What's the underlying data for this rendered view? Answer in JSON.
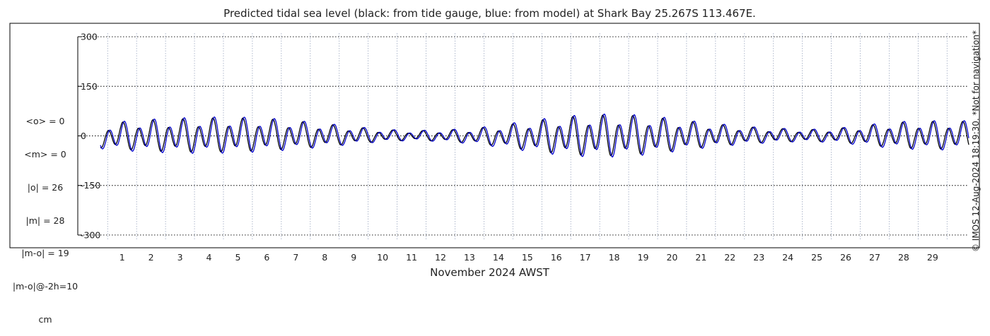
{
  "title": "Predicted tidal sea level (black: from tide gauge, blue: from model) at Shark Bay 25.267S 113.467E.",
  "stats_lines": [
    "<o> = 0",
    "<m> = 0",
    "|o| = 26",
    "|m| = 28",
    "|m-o| = 19",
    "|m-o|@-2h=10",
    "cm"
  ],
  "xlabel": "November 2024 AWST",
  "credit": "© IMOS 12-Aug-2024 18:19:30. *Not for navigation*",
  "chart_data": {
    "type": "line",
    "title": "Predicted tidal sea level (black: from tide gauge, blue: from model) at Shark Bay 25.267S 113.467E.",
    "xlabel": "November 2024 AWST",
    "ylabel": "",
    "units": "cm",
    "xlim": [
      0.25,
      30.25
    ],
    "ylim": [
      -315,
      315
    ],
    "y_ticks": [
      300,
      150,
      0,
      -150,
      -300
    ],
    "y_tick_labels": [
      "300",
      "150",
      "0",
      "-150",
      "-300"
    ],
    "x_ticks": [
      1,
      2,
      3,
      4,
      5,
      6,
      7,
      8,
      9,
      10,
      11,
      12,
      13,
      14,
      15,
      16,
      17,
      18,
      19,
      20,
      21,
      22,
      23,
      24,
      25,
      26,
      27,
      28,
      29
    ],
    "x_tick_labels": [
      "1",
      "2",
      "3",
      "4",
      "5",
      "6",
      "7",
      "8",
      "9",
      "10",
      "11",
      "12",
      "13",
      "14",
      "15",
      "16",
      "17",
      "18",
      "19",
      "20",
      "21",
      "22",
      "23",
      "24",
      "25",
      "26",
      "27",
      "28",
      "29"
    ],
    "grid": true,
    "series": [
      {
        "name": "from tide gauge",
        "color": "#000000",
        "day_max": [
          28,
          44,
          51,
          54,
          57,
          57,
          54,
          47,
          38,
          28,
          20,
          16,
          18,
          22,
          32,
          45,
          57,
          65,
          67,
          63,
          53,
          42,
          33,
          26,
          22,
          20,
          26,
          36,
          44,
          46
        ],
        "day_min": [
          -38,
          -46,
          -52,
          -55,
          -56,
          -54,
          -50,
          -44,
          -36,
          -27,
          -19,
          -15,
          -18,
          -24,
          -35,
          -48,
          -60,
          -67,
          -68,
          -62,
          -52,
          -40,
          -31,
          -24,
          -20,
          -19,
          -24,
          -34,
          -42,
          -45
        ]
      },
      {
        "name": "from model",
        "color": "#0000cc",
        "day_max": [
          30,
          46,
          53,
          57,
          60,
          60,
          57,
          49,
          40,
          30,
          21,
          17,
          19,
          23,
          34,
          48,
          60,
          68,
          70,
          66,
          56,
          44,
          35,
          27,
          23,
          21,
          27,
          38,
          46,
          48
        ],
        "day_min": [
          -41,
          -50,
          -56,
          -59,
          -60,
          -58,
          -54,
          -47,
          -38,
          -29,
          -20,
          -16,
          -19,
          -26,
          -38,
          -52,
          -64,
          -71,
          -72,
          -66,
          -55,
          -43,
          -33,
          -26,
          -21,
          -20,
          -26,
          -37,
          -45,
          -48
        ]
      }
    ]
  }
}
